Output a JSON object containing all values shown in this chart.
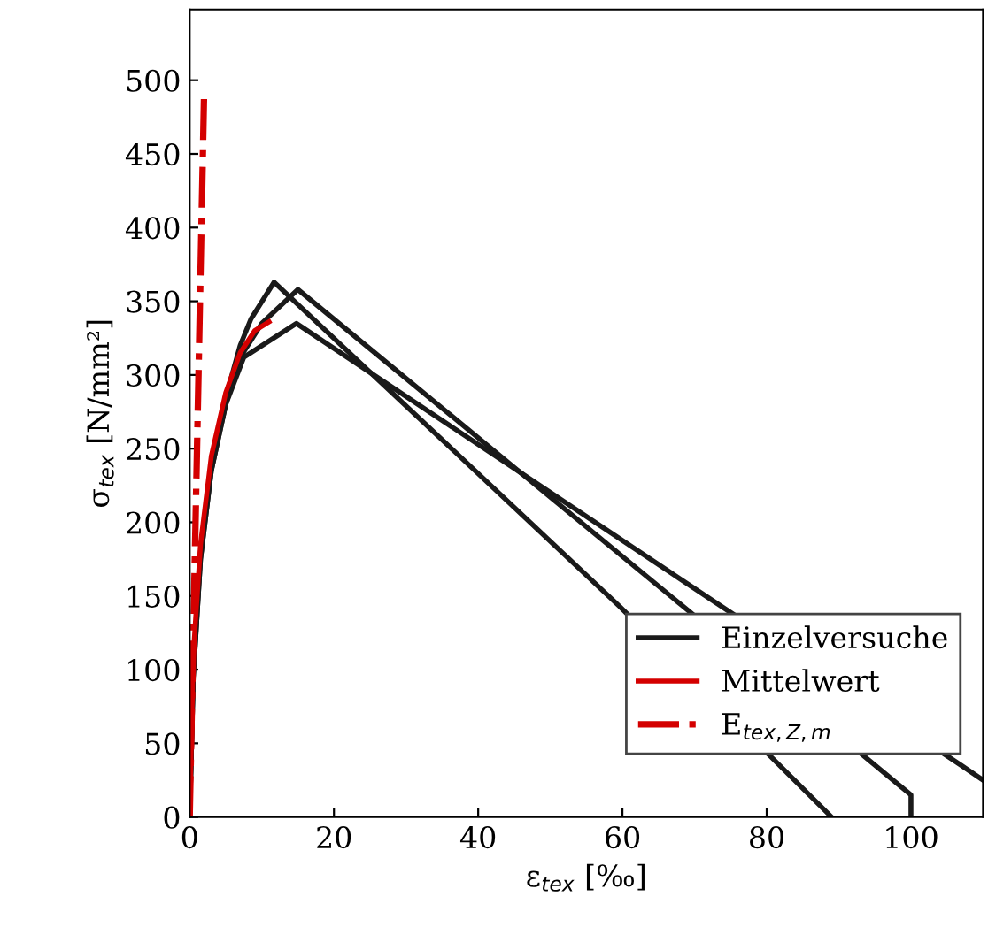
{
  "chart_data": {
    "type": "line",
    "xlabel": "ε$_{tex}$ [‰]",
    "ylabel": "σ$_{tex}$ [N/mm²]",
    "xlim": [
      0,
      110
    ],
    "ylim": [
      0,
      548
    ],
    "xticks": [
      0,
      20,
      40,
      60,
      80,
      100
    ],
    "yticks": [
      0,
      50,
      100,
      150,
      200,
      250,
      300,
      350,
      400,
      450,
      500
    ],
    "legend": "bottom right",
    "grid": false,
    "line_style": "solid",
    "marker": "none",
    "series": [
      {
        "name": "Einzelversuche",
        "color": "#1a1a1a",
        "x": [
          0,
          0.5,
          1.5,
          3,
          5,
          7,
          8.5,
          11.7,
          59.6,
          89
        ],
        "values": [
          0,
          100,
          180,
          240,
          285,
          320,
          338,
          363,
          143,
          0
        ]
      },
      {
        "color": "#1a1a1a",
        "x": [
          0,
          0.5,
          1.5,
          3,
          5,
          7,
          10,
          15,
          68.4,
          100,
          100
        ],
        "values": [
          0,
          95,
          175,
          235,
          280,
          312,
          335,
          358,
          143,
          15,
          0
        ]
      },
      {
        "color": "#1a1a1a",
        "x": [
          0,
          0.5,
          1.5,
          3,
          5,
          7.5,
          14.8,
          73.7,
          107,
          110
        ],
        "values": [
          0,
          95,
          175,
          235,
          280,
          312,
          335,
          143,
          35,
          25
        ]
      },
      {
        "name": "Mittelwert",
        "color": "#d40000",
        "x": [
          0,
          0.5,
          1.5,
          3,
          5,
          7,
          9,
          11
        ],
        "values": [
          0,
          110,
          185,
          245,
          288,
          315,
          330,
          336
        ]
      },
      {
        "name": "E$_{tex,Z,m}$",
        "color": "#d40000",
        "line_style": "dashdot",
        "x": [
          0,
          2
        ],
        "values": [
          0,
          492
        ]
      }
    ]
  }
}
